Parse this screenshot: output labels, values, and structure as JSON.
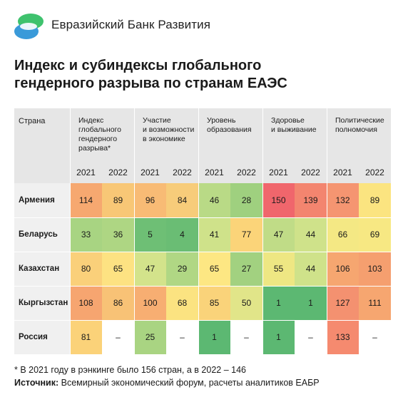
{
  "brand": "Евразийский Банк Развития",
  "title_line1": "Индекс и субиндексы глобального",
  "title_line2": "гендерного разрыва по странам ЕАЭС",
  "footnote": "* В 2021 году в рэнкинге было 156 стран, а в 2022 – 146",
  "source_label": "Источник:",
  "source_text": " Всемирный экономический форум, расчеты аналитиков ЕАБР",
  "colors": {
    "header_bg": "#e6e6e6",
    "country_bg": "#f0f0f0",
    "logo_green": "#3fc26e",
    "logo_blue": "#3a9ad9"
  },
  "chart_data": {
    "type": "table",
    "country_header": "Страна",
    "groups": [
      {
        "label": "Индекс глобального гендерного разрыва*",
        "lines": [
          "Индекс",
          "глобального",
          "гендерного",
          "разрыва*"
        ]
      },
      {
        "label": "Участие и возможности в экономике",
        "lines": [
          "Участие",
          "и возможности",
          "в экономике"
        ]
      },
      {
        "label": "Уровень образования",
        "lines": [
          "Уровень",
          "образования"
        ]
      },
      {
        "label": "Здоровье и выживание",
        "lines": [
          "Здоровье",
          "и выживание"
        ]
      },
      {
        "label": "Политические полномочия",
        "lines": [
          "Политические",
          "полномочия"
        ]
      }
    ],
    "years": [
      "2021",
      "2022"
    ],
    "rows": [
      {
        "country": "Армения",
        "values": [
          "114",
          "89",
          "96",
          "84",
          "46",
          "28",
          "150",
          "139",
          "132",
          "89"
        ]
      },
      {
        "country": "Беларусь",
        "values": [
          "33",
          "36",
          "5",
          "4",
          "41",
          "77",
          "47",
          "44",
          "66",
          "69"
        ]
      },
      {
        "country": "Казахстан",
        "values": [
          "80",
          "65",
          "47",
          "29",
          "65",
          "27",
          "55",
          "44",
          "106",
          "103"
        ]
      },
      {
        "country": "Кыргызстан",
        "values": [
          "108",
          "86",
          "100",
          "68",
          "85",
          "50",
          "1",
          "1",
          "127",
          "111"
        ]
      },
      {
        "country": "Россия",
        "values": [
          "81",
          "–",
          "25",
          "–",
          "1",
          "–",
          "1",
          "–",
          "133",
          "–"
        ]
      }
    ],
    "cell_colors": [
      [
        "#f6a870",
        "#f8c776",
        "#f8bb75",
        "#f7cc7a",
        "#b9da86",
        "#9fd07f",
        "#f0666c",
        "#f3856f",
        "#f59571",
        "#fbe480"
      ],
      [
        "#a8d482",
        "#aed683",
        "#6ebf75",
        "#6abd74",
        "#cfe28a",
        "#fbd479",
        "#c0dc87",
        "#cfe28a",
        "#f4e884",
        "#f7e883"
      ],
      [
        "#fad07a",
        "#fde282",
        "#d3e38b",
        "#b0d784",
        "#fde783",
        "#a2d180",
        "#eee783",
        "#cfe28a",
        "#f6a670",
        "#f59f6f"
      ],
      [
        "#f6a570",
        "#f8c276",
        "#f7ae72",
        "#fbe381",
        "#fad37a",
        "#e1e589",
        "#5cb872",
        "#5cb872",
        "#f49170",
        "#f6a670"
      ],
      [
        "#fbd279",
        "#ffffff",
        "#a9d482",
        "#ffffff",
        "#5cb872",
        "#ffffff",
        "#5cb872",
        "#ffffff",
        "#f58a6f",
        "#ffffff"
      ]
    ]
  }
}
